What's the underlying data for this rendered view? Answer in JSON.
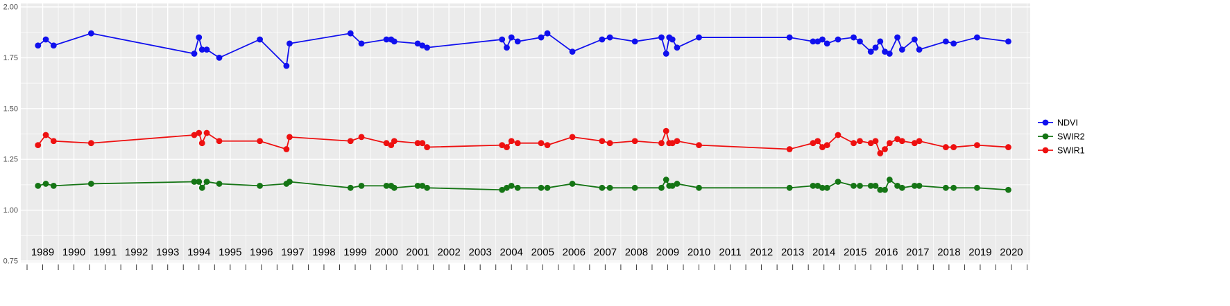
{
  "figure": {
    "background": "#FFFFFF",
    "panel_background": "#EBEBEB",
    "grid_color": "#FFFFFF",
    "axis_text_color": "#4D4D4D",
    "x_label_color": "#000000",
    "tick_color": "#333333"
  },
  "legend": {
    "position": "right",
    "items": [
      {
        "label": "NDVI",
        "color": "#1010EE"
      },
      {
        "label": "SWIR2",
        "color": "#157515"
      },
      {
        "label": "SWIR1",
        "color": "#EE1010"
      }
    ]
  },
  "chart_data": {
    "type": "line",
    "title": "",
    "xlabel": "",
    "ylabel": "",
    "grid": true,
    "legend_position": "right",
    "xlim": [
      1988.3,
      2020.6
    ],
    "ylim": [
      0.75,
      2.0
    ],
    "x_ticks": [
      1989,
      1990,
      1991,
      1992,
      1993,
      1994,
      1995,
      1996,
      1997,
      1998,
      1999,
      2000,
      2001,
      2002,
      2003,
      2004,
      2005,
      2006,
      2007,
      2008,
      2009,
      2010,
      2011,
      2012,
      2013,
      2014,
      2015,
      2016,
      2017,
      2018,
      2019,
      2020
    ],
    "y_ticks": [
      0.75,
      1.0,
      1.25,
      1.5,
      1.75,
      2.0
    ],
    "y_tick_labels": [
      "0.75",
      "1.00",
      "1.25",
      "1.50",
      "1.75",
      "2.00"
    ],
    "x": [
      1988.85,
      1989.1,
      1989.35,
      1990.55,
      1993.85,
      1994.0,
      1994.1,
      1994.25,
      1994.65,
      1995.95,
      1996.8,
      1996.9,
      1998.85,
      1999.2,
      2000.0,
      2000.15,
      2000.25,
      2001.0,
      2001.15,
      2001.3,
      2003.7,
      2003.85,
      2004.0,
      2004.2,
      2004.95,
      2005.15,
      2005.95,
      2006.9,
      2007.15,
      2007.95,
      2008.8,
      2008.95,
      2009.05,
      2009.15,
      2009.3,
      2010.0,
      2012.9,
      2013.65,
      2013.8,
      2013.95,
      2014.1,
      2014.45,
      2014.95,
      2015.15,
      2015.5,
      2015.65,
      2015.8,
      2015.95,
      2016.1,
      2016.35,
      2016.5,
      2016.9,
      2017.05,
      2017.9,
      2018.15,
      2018.9,
      2019.9
    ],
    "series": [
      {
        "name": "NDVI",
        "color": "#1010EE",
        "values": [
          1.81,
          1.84,
          1.81,
          1.87,
          1.77,
          1.85,
          1.79,
          1.79,
          1.75,
          1.84,
          1.71,
          1.82,
          1.87,
          1.82,
          1.84,
          1.84,
          1.83,
          1.82,
          1.81,
          1.8,
          1.84,
          1.8,
          1.85,
          1.83,
          1.85,
          1.87,
          1.78,
          1.84,
          1.85,
          1.83,
          1.85,
          1.77,
          1.85,
          1.84,
          1.8,
          1.85,
          1.85,
          1.83,
          1.83,
          1.84,
          1.82,
          1.84,
          1.85,
          1.83,
          1.78,
          1.8,
          1.83,
          1.78,
          1.77,
          1.85,
          1.79,
          1.84,
          1.79,
          1.83,
          1.82,
          1.85,
          1.83
        ]
      },
      {
        "name": "SWIR2",
        "color": "#157515",
        "values": [
          1.12,
          1.13,
          1.12,
          1.13,
          1.14,
          1.14,
          1.11,
          1.14,
          1.13,
          1.12,
          1.13,
          1.14,
          1.11,
          1.12,
          1.12,
          1.12,
          1.11,
          1.12,
          1.12,
          1.11,
          1.1,
          1.11,
          1.12,
          1.11,
          1.11,
          1.11,
          1.13,
          1.11,
          1.11,
          1.11,
          1.11,
          1.15,
          1.12,
          1.12,
          1.13,
          1.11,
          1.11,
          1.12,
          1.12,
          1.11,
          1.11,
          1.14,
          1.12,
          1.12,
          1.12,
          1.12,
          1.1,
          1.1,
          1.15,
          1.12,
          1.11,
          1.12,
          1.12,
          1.11,
          1.11,
          1.11,
          1.1
        ]
      },
      {
        "name": "SWIR1",
        "color": "#EE1010",
        "values": [
          1.32,
          1.37,
          1.34,
          1.33,
          1.37,
          1.38,
          1.33,
          1.38,
          1.34,
          1.34,
          1.3,
          1.36,
          1.34,
          1.36,
          1.33,
          1.32,
          1.34,
          1.33,
          1.33,
          1.31,
          1.32,
          1.31,
          1.34,
          1.33,
          1.33,
          1.32,
          1.36,
          1.34,
          1.33,
          1.34,
          1.33,
          1.39,
          1.33,
          1.33,
          1.34,
          1.32,
          1.3,
          1.33,
          1.34,
          1.31,
          1.32,
          1.37,
          1.33,
          1.34,
          1.33,
          1.34,
          1.28,
          1.3,
          1.33,
          1.35,
          1.34,
          1.33,
          1.34,
          1.31,
          1.31,
          1.32,
          1.31
        ]
      }
    ]
  }
}
